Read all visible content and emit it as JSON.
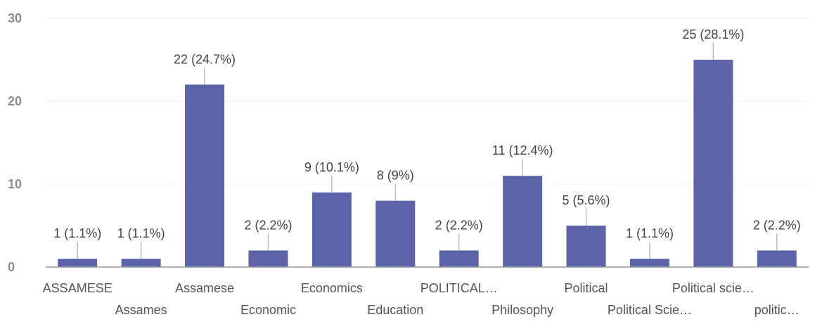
{
  "chart_data": {
    "type": "bar",
    "title": "",
    "xlabel": "",
    "ylabel": "",
    "ylim": [
      0,
      30
    ],
    "yticks": [
      0,
      10,
      20,
      30
    ],
    "grid": true,
    "legend": "none",
    "bar_color": "#5c63a8",
    "categories": [
      "ASSAMESE",
      "Assames",
      "Assamese",
      "Economic",
      "Economics",
      "Education",
      "POLITICAL…",
      "Philosophy",
      "Political",
      "Political Scie…",
      "Political scie…",
      "politic…"
    ],
    "values": [
      1,
      1,
      22,
      2,
      9,
      8,
      2,
      11,
      5,
      1,
      25,
      2
    ],
    "data_labels": [
      "1 (1.1%)",
      "1 (1.1%)",
      "22 (24.7%)",
      "2 (2.2%)",
      "9 (10.1%)",
      "8 (9%)",
      "2 (2.2%)",
      "11 (12.4%)",
      "5 (5.6%)",
      "1 (1.1%)",
      "25 (28.1%)",
      "2 (2.2%)"
    ]
  }
}
